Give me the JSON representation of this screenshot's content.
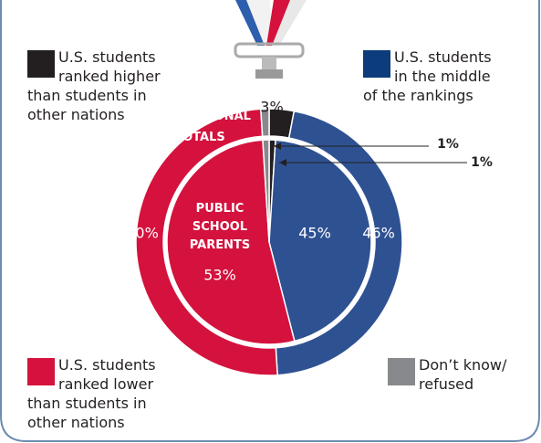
{
  "chart_data": {
    "type": "nested-donut",
    "categories": [
      "U.S. students ranked higher than students in other nations",
      "U.S. students in the middle of the rankings",
      "U.S. students ranked lower than students in other nations",
      "Don’t know/ refused"
    ],
    "colors": [
      "#231f20",
      "#2e5192",
      "#d4123d",
      "#88898c"
    ],
    "legend_colors": [
      "#231f20",
      "#0d3c7c",
      "#d4123d",
      "#88898c"
    ],
    "series": [
      {
        "name": "NATIONAL TOTALS",
        "values": [
          3,
          46,
          50,
          1
        ],
        "value_labels": [
          "3%",
          "46%",
          "50%",
          null
        ]
      },
      {
        "name": "PUBLIC SCHOOL PARENTS",
        "values": [
          1,
          45,
          53,
          1
        ],
        "value_labels": [
          "1%",
          "45%",
          "53%",
          "1%"
        ]
      }
    ]
  }
}
